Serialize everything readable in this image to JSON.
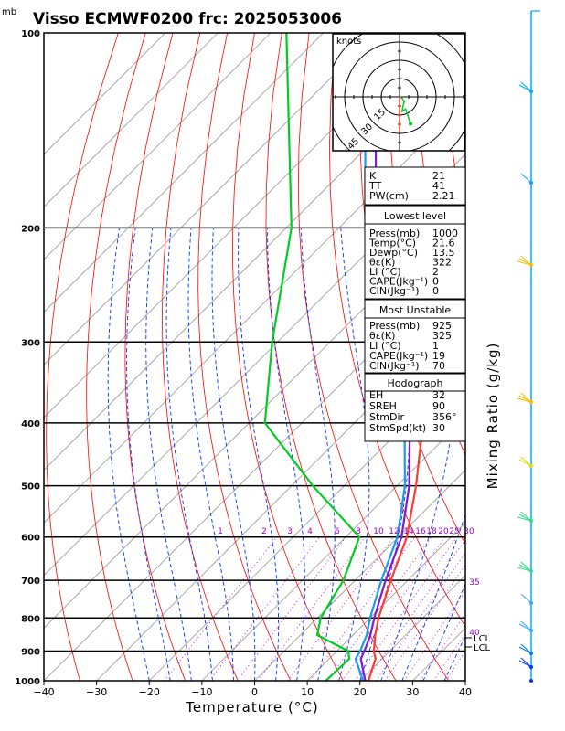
{
  "title": "Visso ECMWF0200  frc: 2025053006",
  "pressure_unit": "mb",
  "x_axis_label": "Temperature (°C)",
  "right_label": "Mixing Ratio (g/kg)",
  "hodograph": {
    "unit_label": "knots",
    "ring_labels": [
      "15",
      "30",
      "45"
    ]
  },
  "indices_block": {
    "rows": [
      {
        "label": "K",
        "value": "21"
      },
      {
        "label": "TT",
        "value": "41"
      },
      {
        "label": "PW(cm)",
        "value": "2.21"
      }
    ]
  },
  "lowest_level": {
    "header": "Lowest level",
    "rows": [
      {
        "label": "Press(mb)",
        "value": "1000"
      },
      {
        "label": "Temp(°C)",
        "value": "21.6"
      },
      {
        "label": "Dewp(°C)",
        "value": "13.5"
      },
      {
        "label": "θε(K)",
        "value": "322"
      },
      {
        "label": "LI (°C)",
        "value": "2"
      },
      {
        "label": "CAPE(Jkg⁻¹)",
        "value": "0"
      },
      {
        "label": "CIN(Jkg⁻¹)",
        "value": "0"
      }
    ]
  },
  "most_unstable": {
    "header": "Most Unstable",
    "rows": [
      {
        "label": "Press(mb)",
        "value": "925"
      },
      {
        "label": "θε(K)",
        "value": "325"
      },
      {
        "label": "LI (°C)",
        "value": "1"
      },
      {
        "label": "CAPE(Jkg⁻¹)",
        "value": "19"
      },
      {
        "label": "CIN(Jkg⁻¹)",
        "value": "70"
      }
    ]
  },
  "hodograph_block": {
    "header": "Hodograph",
    "rows": [
      {
        "label": "EH",
        "value": "32"
      },
      {
        "label": "SREH",
        "value": "90"
      },
      {
        "label": "StmDir",
        "value": "356°"
      },
      {
        "label": "StmSpd(kt)",
        "value": "30"
      }
    ]
  },
  "lcl_labels": [
    "LCL",
    "LCL"
  ],
  "colors": {
    "temperature": "#ff3b30",
    "dewpoint": "#00cc22",
    "parcel_virtual": "#7a1bd6",
    "parcel": "#1e9be8",
    "isotherm": "#999999",
    "dry_adiabat": "#ff0000",
    "moist_adiabat": "#0033ff",
    "mixing_ratio": "#cc00cc"
  },
  "chart_data": {
    "type": "line",
    "title": "Visso ECMWF0200  frc: 2025053006",
    "xlabel": "Temperature (°C)",
    "ylabel": "mb",
    "xlim": [
      -40,
      40
    ],
    "ylim": [
      1000,
      100
    ],
    "x_ticks": [
      "−40",
      "−30",
      "−20",
      "−10",
      "0",
      "10",
      "20",
      "30",
      "40"
    ],
    "x_tick_values": [
      -40,
      -30,
      -20,
      -10,
      0,
      10,
      20,
      30,
      40
    ],
    "y_ticks": [
      "100",
      "200",
      "300",
      "400",
      "500",
      "600",
      "700",
      "800",
      "900",
      "1000"
    ],
    "y_tick_values": [
      100,
      200,
      300,
      400,
      500,
      600,
      700,
      800,
      900,
      1000
    ],
    "mixing_ratio_labels": [
      "1",
      "2",
      "3",
      "4",
      "6",
      "8",
      "10",
      "12",
      "14",
      "16",
      "18",
      "20",
      "25",
      "30",
      "35",
      "40"
    ],
    "series": [
      {
        "name": "Temperature",
        "points": [
          {
            "p": 1000,
            "t": 21.6
          },
          {
            "p": 925,
            "t": 18.8
          },
          {
            "p": 900,
            "t": 17.0
          },
          {
            "p": 850,
            "t": 14.2
          },
          {
            "p": 800,
            "t": 11.6
          },
          {
            "p": 700,
            "t": 6.8
          },
          {
            "p": 600,
            "t": 1.6
          },
          {
            "p": 500,
            "t": -6.4
          },
          {
            "p": 400,
            "t": -17.0
          },
          {
            "p": 300,
            "t": -32.0
          },
          {
            "p": 250,
            "t": -40.6
          },
          {
            "p": 200,
            "t": -45.5
          },
          {
            "p": 100,
            "t": -64.0
          }
        ]
      },
      {
        "name": "Dewpoint",
        "points": [
          {
            "p": 1000,
            "t": 13.5
          },
          {
            "p": 925,
            "t": 13.8
          },
          {
            "p": 900,
            "t": 12.2
          },
          {
            "p": 850,
            "t": 3.2
          },
          {
            "p": 800,
            "t": 0.6
          },
          {
            "p": 700,
            "t": -2.2
          },
          {
            "p": 600,
            "t": -7.4
          },
          {
            "p": 500,
            "t": -26.0
          },
          {
            "p": 400,
            "t": -47.0
          },
          {
            "p": 300,
            "t": -61.0
          },
          {
            "p": 200,
            "t": -79.0
          },
          {
            "p": 100,
            "t": -117.0
          }
        ]
      },
      {
        "name": "Parcel (virtual)",
        "points": [
          {
            "p": 1000,
            "t": 21.0
          },
          {
            "p": 925,
            "t": 16.0
          },
          {
            "p": 900,
            "t": 15.2
          },
          {
            "p": 850,
            "t": 13.3
          },
          {
            "p": 800,
            "t": 10.8
          },
          {
            "p": 700,
            "t": 5.8
          },
          {
            "p": 600,
            "t": 0.6
          },
          {
            "p": 500,
            "t": -7.7
          },
          {
            "p": 400,
            "t": -19.5
          },
          {
            "p": 300,
            "t": -37.0
          },
          {
            "p": 200,
            "t": -63.0
          },
          {
            "p": 130,
            "t": -86.0
          }
        ]
      },
      {
        "name": "Parcel",
        "points": [
          {
            "p": 1000,
            "t": 20.6
          },
          {
            "p": 925,
            "t": 15.0
          },
          {
            "p": 900,
            "t": 14.4
          },
          {
            "p": 850,
            "t": 12.6
          },
          {
            "p": 800,
            "t": 10.0
          },
          {
            "p": 700,
            "t": 5.0
          },
          {
            "p": 600,
            "t": -0.2
          },
          {
            "p": 500,
            "t": -8.5
          },
          {
            "p": 400,
            "t": -20.5
          },
          {
            "p": 300,
            "t": -38.5
          },
          {
            "p": 200,
            "t": -65.0
          },
          {
            "p": 130,
            "t": -88.0
          }
        ]
      }
    ],
    "hodograph_points": [
      {
        "u": 0,
        "v": 0
      },
      {
        "u": 2,
        "v": -1
      },
      {
        "u": 4,
        "v": -4
      },
      {
        "u": 3,
        "v": -7
      },
      {
        "u": 2,
        "v": -12
      },
      {
        "u": 5,
        "v": -10
      },
      {
        "u": 9,
        "v": -22
      }
    ],
    "storm_motion": {
      "dir": 356,
      "speed_kt": 30
    },
    "grid": true,
    "legend": "none"
  }
}
